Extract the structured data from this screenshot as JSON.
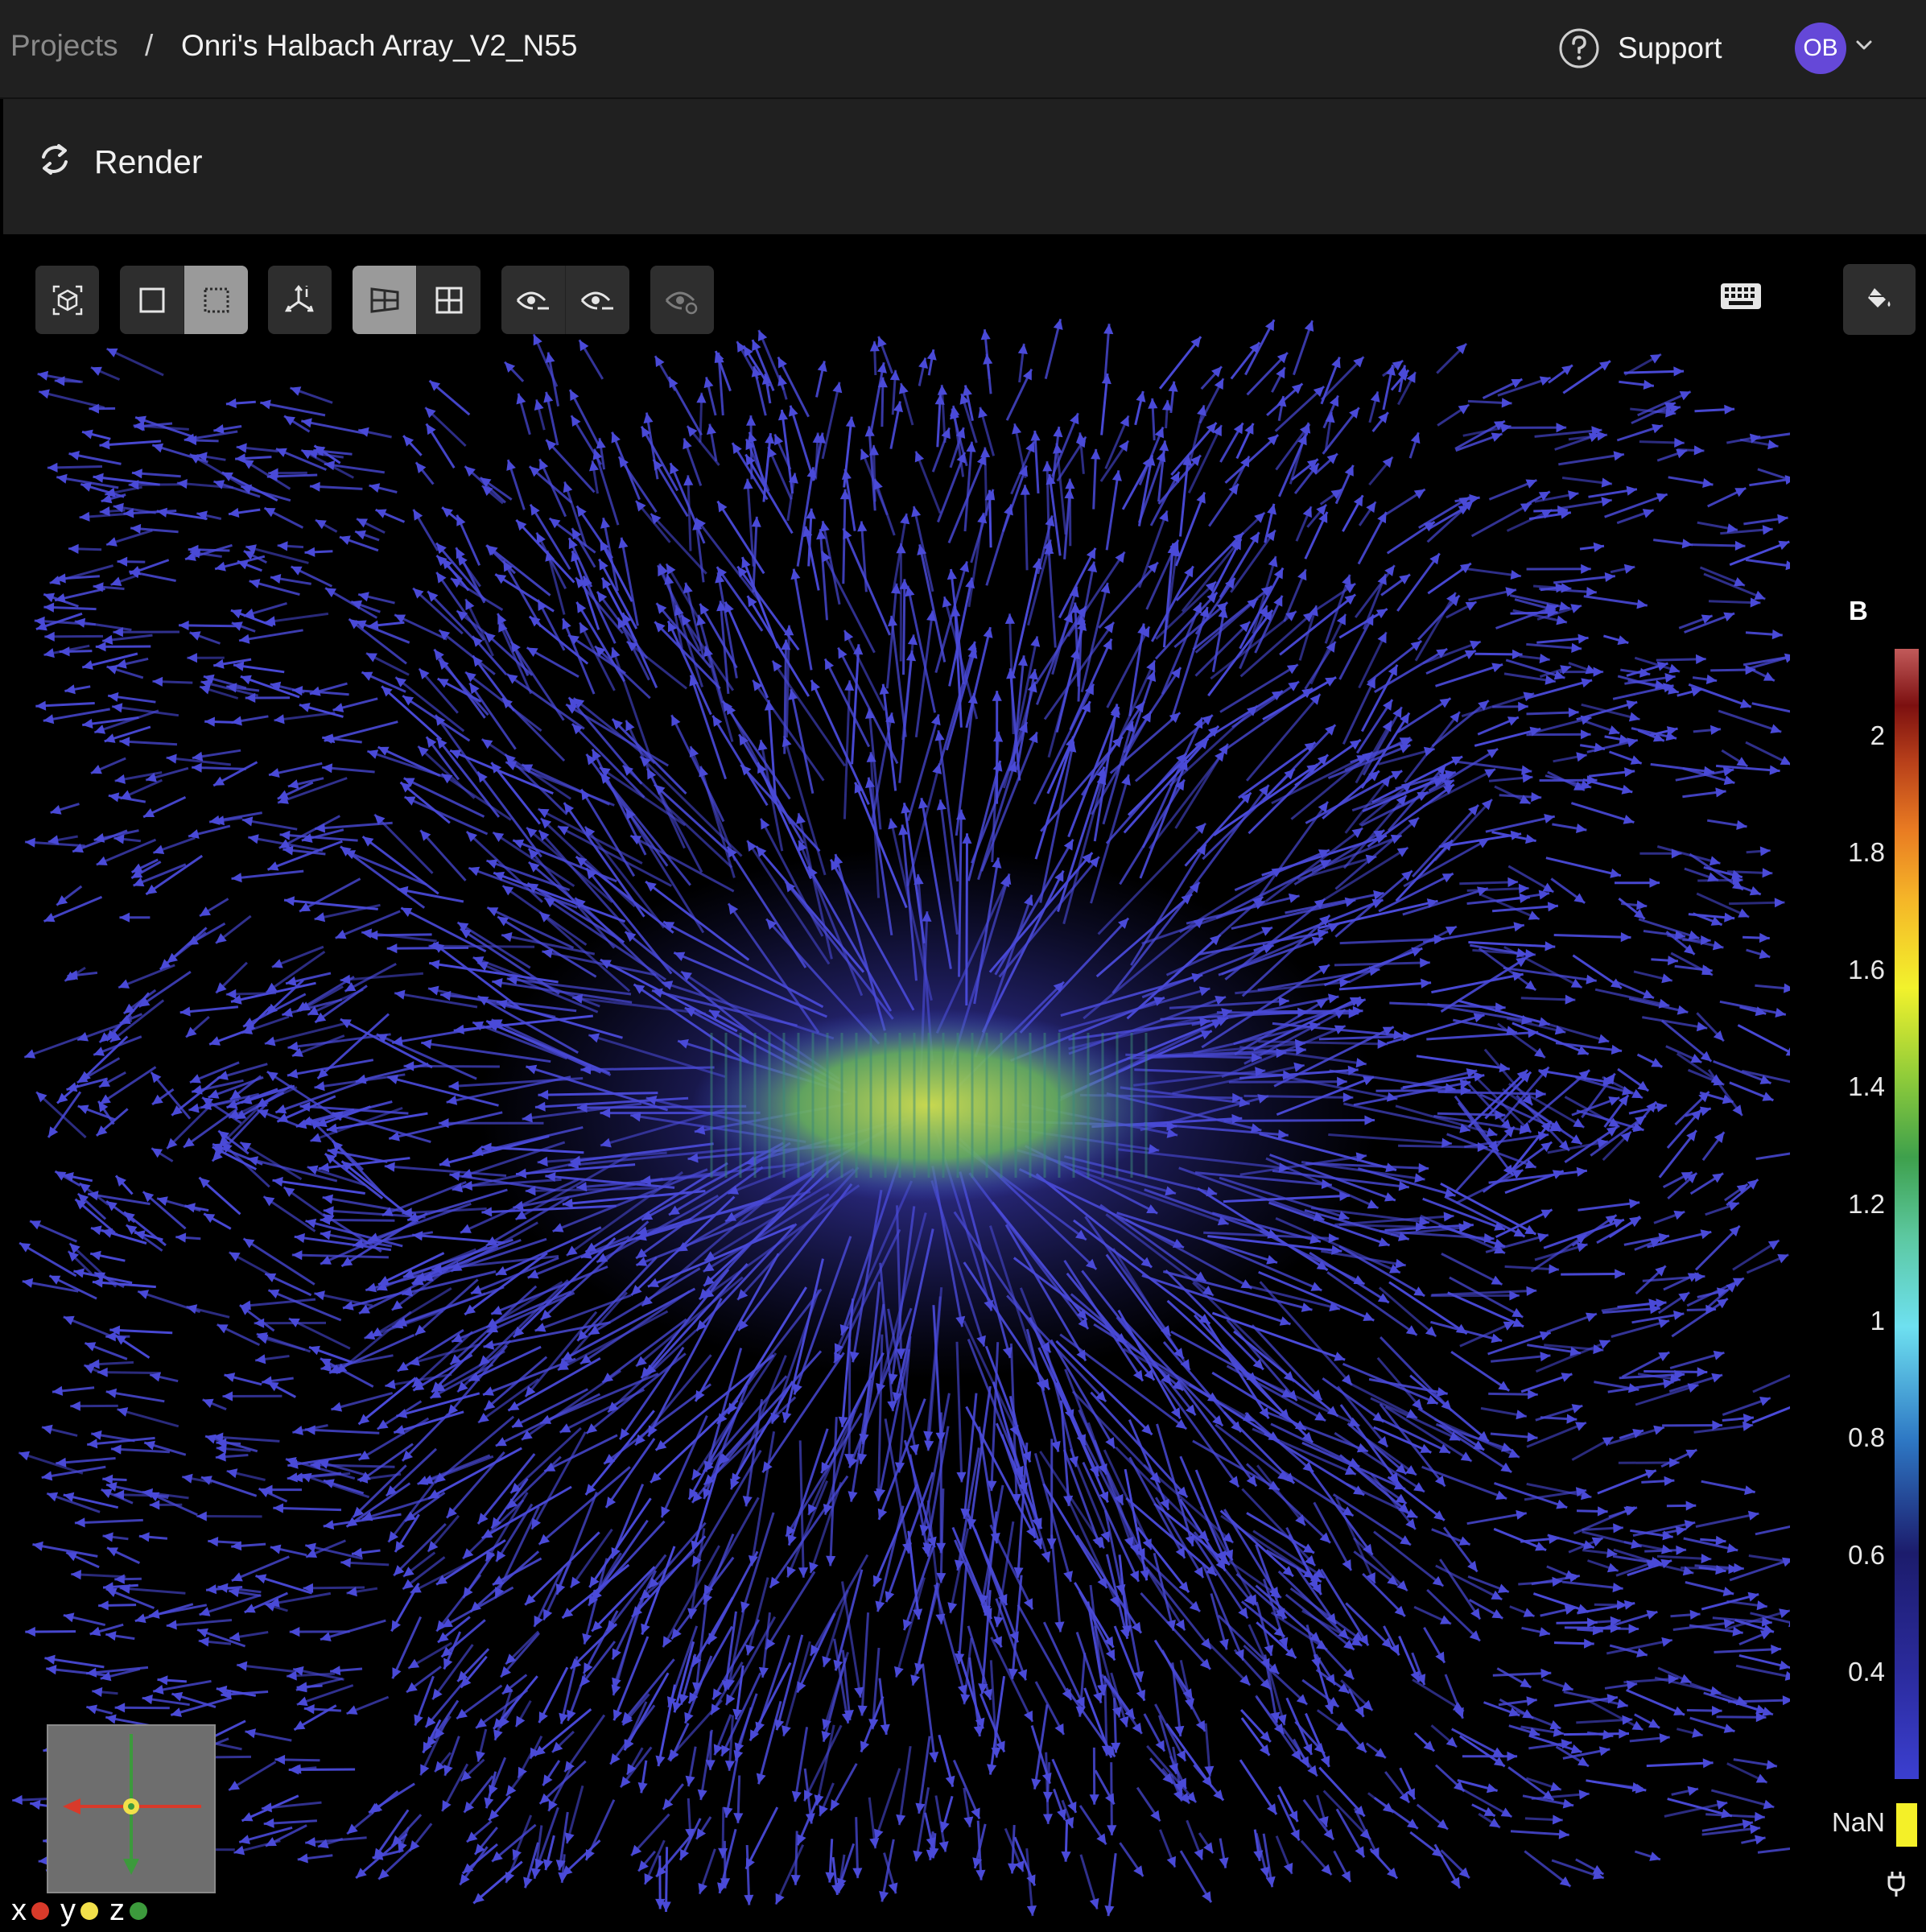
{
  "breadcrumb": {
    "root": "Projects",
    "separator": "/",
    "current": "Onri's Halbach Array_V2_N55"
  },
  "header": {
    "support_label": "Support",
    "support_icon": "help-circle-icon",
    "avatar_initials": "OB",
    "avatar_color": "#6548d8"
  },
  "render": {
    "label": "Render",
    "icon": "refresh-icon"
  },
  "toolbar": {
    "groups": [
      [
        "reset-view-icon"
      ],
      [
        "box-select-icon",
        "dashed-select-icon"
      ],
      [
        "axes-triad-icon"
      ],
      [
        "layout-split-icon",
        "grid-4-icon"
      ],
      [
        "eye-hide-icon",
        "eye-show-icon"
      ],
      [
        "eye-refresh-icon"
      ]
    ],
    "active": [
      "dashed-select-icon",
      "layout-split-icon"
    ],
    "disabled": [
      "eye-refresh-icon"
    ],
    "right": [
      "keyboard-icon",
      "paint-bucket-icon"
    ]
  },
  "legend": {
    "title": "B",
    "ticks": [
      "2",
      "1.8",
      "1.6",
      "1.4",
      "1.2",
      "1",
      "0.8",
      "0.6",
      "0.4"
    ],
    "nan_label": "NaN",
    "nan_color": "#f4f028",
    "arrow_color": "#4a4ad8"
  },
  "orientation": {
    "x_label": "x",
    "y_label": "y",
    "z_label": "z",
    "x_color": "#d83a2a",
    "y_color": "#f2e04a",
    "z_color": "#3c9a3c"
  }
}
